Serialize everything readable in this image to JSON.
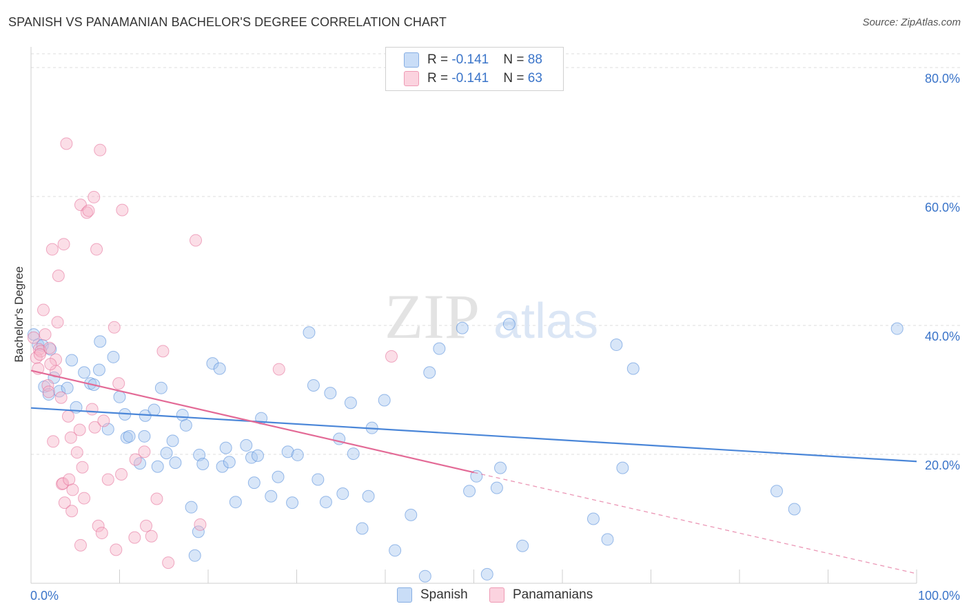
{
  "header": {
    "title": "SPANISH VS PANAMANIAN BACHELOR'S DEGREE CORRELATION CHART",
    "source": "Source: ZipAtlas.com"
  },
  "watermark": {
    "zip": "ZIP",
    "atlas": "atlas"
  },
  "legend": {
    "rows": [
      {
        "r_label": "R = ",
        "r_value": "-0.141",
        "n_label": "N = ",
        "n_value": "88",
        "color": "#a9c8f0"
      },
      {
        "r_label": "R = ",
        "r_value": "-0.141",
        "n_label": "N = ",
        "n_value": "63",
        "color": "#f7b6c9"
      }
    ],
    "bottom": [
      {
        "label": "Spanish",
        "color": "#a9c8f0"
      },
      {
        "label": "Panamanians",
        "color": "#f7b6c9"
      }
    ]
  },
  "chart_data": {
    "type": "scatter",
    "title": "SPANISH VS PANAMANIAN BACHELOR'S DEGREE CORRELATION CHART",
    "ylabel": "Bachelor's Degree",
    "xlabel": "",
    "xlim": [
      0,
      100
    ],
    "ylim": [
      0,
      80
    ],
    "x_tick_labels": [
      "0.0%",
      "100.0%"
    ],
    "y_ticks": [
      20,
      40,
      60,
      80
    ],
    "y_tick_labels": [
      "20.0%",
      "40.0%",
      "60.0%",
      "80.0%"
    ],
    "grid": true,
    "legend_position": "top-center",
    "series": [
      {
        "name": "Spanish",
        "color": "#4a86d8",
        "fill": "#a9c8f0",
        "trend": {
          "x": [
            0,
            100
          ],
          "y": [
            27.2,
            18.9
          ]
        },
        "points": [
          [
            0.3,
            38.6
          ],
          [
            0.8,
            37.0
          ],
          [
            1.3,
            36.9
          ],
          [
            1.5,
            30.5
          ],
          [
            2.0,
            29.3
          ],
          [
            2.2,
            36.3
          ],
          [
            2.6,
            31.9
          ],
          [
            3.2,
            29.8
          ],
          [
            4.1,
            30.3
          ],
          [
            4.6,
            34.6
          ],
          [
            5.1,
            27.3
          ],
          [
            6.0,
            32.7
          ],
          [
            6.7,
            31.0
          ],
          [
            7.1,
            30.8
          ],
          [
            7.7,
            33.1
          ],
          [
            8.7,
            23.9
          ],
          [
            9.3,
            35.1
          ],
          [
            10.0,
            28.9
          ],
          [
            10.6,
            26.2
          ],
          [
            10.8,
            22.6
          ],
          [
            11.1,
            22.8
          ],
          [
            12.3,
            18.6
          ],
          [
            12.9,
            26.0
          ],
          [
            12.8,
            22.8
          ],
          [
            13.9,
            26.9
          ],
          [
            14.7,
            30.3
          ],
          [
            14.3,
            18.1
          ],
          [
            15.3,
            20.2
          ],
          [
            16.0,
            22.1
          ],
          [
            16.3,
            18.7
          ],
          [
            17.1,
            26.1
          ],
          [
            17.5,
            24.5
          ],
          [
            18.1,
            11.8
          ],
          [
            18.5,
            4.3
          ],
          [
            19.0,
            19.9
          ],
          [
            19.4,
            18.5
          ],
          [
            20.5,
            34.1
          ],
          [
            21.3,
            33.3
          ],
          [
            21.6,
            18.1
          ],
          [
            22.0,
            21.0
          ],
          [
            22.4,
            18.8
          ],
          [
            23.1,
            12.6
          ],
          [
            24.3,
            21.4
          ],
          [
            24.9,
            19.5
          ],
          [
            25.2,
            15.6
          ],
          [
            26.0,
            25.6
          ],
          [
            25.6,
            19.8
          ],
          [
            27.1,
            13.5
          ],
          [
            27.9,
            16.5
          ],
          [
            29.0,
            20.4
          ],
          [
            29.5,
            12.5
          ],
          [
            30.1,
            19.9
          ],
          [
            31.4,
            38.9
          ],
          [
            31.9,
            30.7
          ],
          [
            32.4,
            16.1
          ],
          [
            33.3,
            12.6
          ],
          [
            33.8,
            29.5
          ],
          [
            34.8,
            22.4
          ],
          [
            35.2,
            13.9
          ],
          [
            36.1,
            28.0
          ],
          [
            36.4,
            20.1
          ],
          [
            37.4,
            8.5
          ],
          [
            38.1,
            13.5
          ],
          [
            38.5,
            24.1
          ],
          [
            39.9,
            28.4
          ],
          [
            41.1,
            5.1
          ],
          [
            42.9,
            10.6
          ],
          [
            44.5,
            1.1
          ],
          [
            45.0,
            32.7
          ],
          [
            46.1,
            36.4
          ],
          [
            48.7,
            39.6
          ],
          [
            49.5,
            14.3
          ],
          [
            50.3,
            16.6
          ],
          [
            51.5,
            1.4
          ],
          [
            52.6,
            14.8
          ],
          [
            53.0,
            17.9
          ],
          [
            54.0,
            40.2
          ],
          [
            55.5,
            5.8
          ],
          [
            63.5,
            10.0
          ],
          [
            65.1,
            6.8
          ],
          [
            66.1,
            37.0
          ],
          [
            66.8,
            17.9
          ],
          [
            68.0,
            33.3
          ],
          [
            84.2,
            14.3
          ],
          [
            86.2,
            11.5
          ],
          [
            97.8,
            39.5
          ],
          [
            7.8,
            37.5
          ],
          [
            18.9,
            8.0
          ]
        ]
      },
      {
        "name": "Panamanians",
        "color": "#e36a96",
        "fill": "#f7b6c9",
        "trend": {
          "x": [
            0,
            50
          ],
          "y": [
            33.0,
            17.2
          ]
        },
        "trend_dashed": {
          "x": [
            50,
            100
          ],
          "y": [
            17.2,
            1.5
          ]
        },
        "points": [
          [
            0.3,
            38.1
          ],
          [
            0.6,
            35.0
          ],
          [
            0.8,
            33.3
          ],
          [
            0.9,
            36.3
          ],
          [
            1.1,
            36.0
          ],
          [
            1.4,
            42.4
          ],
          [
            1.6,
            38.6
          ],
          [
            1.9,
            30.7
          ],
          [
            2.0,
            29.7
          ],
          [
            2.1,
            36.5
          ],
          [
            2.4,
            51.8
          ],
          [
            2.5,
            22.0
          ],
          [
            2.8,
            32.9
          ],
          [
            2.8,
            34.7
          ],
          [
            3.0,
            40.5
          ],
          [
            3.1,
            47.7
          ],
          [
            3.4,
            28.8
          ],
          [
            3.5,
            15.4
          ],
          [
            3.6,
            15.5
          ],
          [
            3.7,
            52.6
          ],
          [
            3.8,
            12.5
          ],
          [
            4.0,
            68.2
          ],
          [
            4.2,
            25.9
          ],
          [
            4.3,
            16.1
          ],
          [
            4.5,
            22.6
          ],
          [
            4.6,
            11.2
          ],
          [
            4.7,
            14.5
          ],
          [
            5.2,
            20.3
          ],
          [
            5.5,
            23.8
          ],
          [
            5.6,
            5.9
          ],
          [
            5.6,
            58.7
          ],
          [
            5.8,
            18.0
          ],
          [
            6.3,
            57.5
          ],
          [
            6.5,
            57.8
          ],
          [
            6.9,
            27.0
          ],
          [
            7.1,
            59.9
          ],
          [
            7.2,
            24.2
          ],
          [
            7.4,
            51.8
          ],
          [
            7.6,
            8.9
          ],
          [
            7.8,
            67.2
          ],
          [
            8.0,
            7.8
          ],
          [
            8.2,
            25.2
          ],
          [
            8.7,
            16.1
          ],
          [
            9.4,
            39.7
          ],
          [
            9.6,
            5.2
          ],
          [
            9.9,
            31.0
          ],
          [
            10.2,
            16.9
          ],
          [
            10.3,
            57.9
          ],
          [
            11.7,
            7.1
          ],
          [
            11.8,
            19.2
          ],
          [
            12.8,
            20.4
          ],
          [
            13.6,
            7.3
          ],
          [
            14.2,
            13.1
          ],
          [
            14.9,
            36.0
          ],
          [
            15.5,
            3.2
          ],
          [
            18.6,
            53.2
          ],
          [
            19.1,
            9.1
          ],
          [
            28.0,
            33.2
          ],
          [
            40.7,
            35.2
          ],
          [
            2.2,
            34.0
          ],
          [
            1.0,
            35.5
          ],
          [
            6.0,
            13.2
          ],
          [
            13.0,
            8.9
          ]
        ]
      }
    ]
  }
}
